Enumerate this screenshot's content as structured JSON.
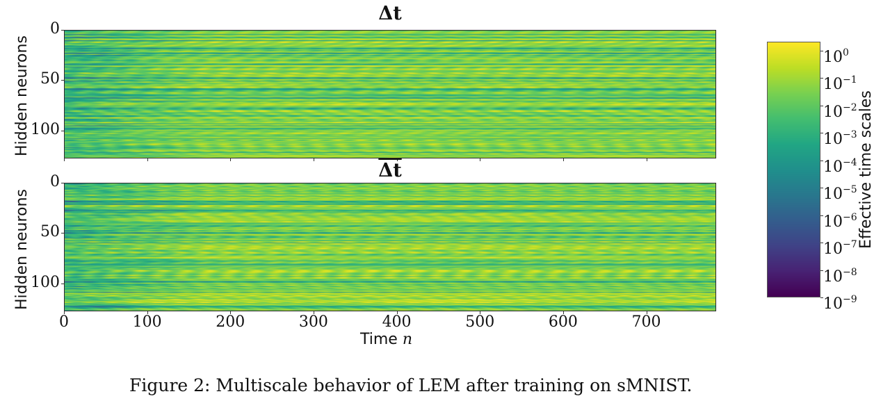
{
  "figure": {
    "caption": "Figure 2: Multiscale behavior of LEM after training on sMNIST."
  },
  "chart_data": [
    {
      "type": "heatmap",
      "title": "Δt",
      "title_overline": false,
      "xlabel": "",
      "ylabel": "Hidden neurons",
      "x_range": [
        0,
        784
      ],
      "y_range": [
        0,
        128
      ],
      "y_inverted": true,
      "xticks": [
        0,
        100,
        200,
        300,
        400,
        500,
        600,
        700
      ],
      "xtick_labels_visible": false,
      "yticks": [
        0,
        50,
        100
      ],
      "ytick_labels": [
        "0",
        "50",
        "100"
      ],
      "colormap": "viridis",
      "color_scale": "log",
      "value_description": "Effective time scales per hidden neuron over time; mostly 1e-2 to 1e0 with darker bands (~1e-5 to 1e-7) concentrated for n < 150; periodic modulation with period ~28 steps",
      "log10_value_range": [
        -7,
        0
      ],
      "periodic_modulation_period": 28,
      "seed": 17
    },
    {
      "type": "heatmap",
      "title": "Δt",
      "title_overline": true,
      "xlabel": "Time n",
      "ylabel": "Hidden neurons",
      "x_range": [
        0,
        784
      ],
      "y_range": [
        0,
        128
      ],
      "y_inverted": true,
      "xticks": [
        0,
        100,
        200,
        300,
        400,
        500,
        600,
        700
      ],
      "xtick_labels": [
        "0",
        "100",
        "200",
        "300",
        "400",
        "500",
        "600",
        "700"
      ],
      "yticks": [
        0,
        50,
        100
      ],
      "ytick_labels": [
        "0",
        "50",
        "100"
      ],
      "colormap": "viridis",
      "color_scale": "log",
      "value_description": "Effective time scales (overline Δt) per hidden neuron over time; mostly 1e-2 to 1e0 with darker bands concentrated for n < 150; periodic modulation with period ~28 steps",
      "log10_value_range": [
        -7,
        0
      ],
      "periodic_modulation_period": 28,
      "seed": 41
    },
    {
      "type": "colorbar",
      "label": "Effective time scales",
      "colormap": "viridis",
      "scale": "log",
      "range": [
        1e-09,
        2.1
      ],
      "tick_values": [
        1,
        0.1,
        0.01,
        0.001,
        0.0001,
        1e-05,
        1e-06,
        1e-07,
        1e-08,
        1e-09
      ],
      "tick_labels": [
        {
          "base": "10",
          "exp": "0"
        },
        {
          "base": "10",
          "exp": "−1"
        },
        {
          "base": "10",
          "exp": "−2"
        },
        {
          "base": "10",
          "exp": "−3"
        },
        {
          "base": "10",
          "exp": "−4"
        },
        {
          "base": "10",
          "exp": "−5"
        },
        {
          "base": "10",
          "exp": "−6"
        },
        {
          "base": "10",
          "exp": "−7"
        },
        {
          "base": "10",
          "exp": "−8"
        },
        {
          "base": "10",
          "exp": "−9"
        }
      ]
    }
  ],
  "labels": {
    "top_title": "Δt",
    "bottom_title": "Δt",
    "ylabel_top": "Hidden neurons",
    "ylabel_bottom": "Hidden neurons",
    "xlabel_word": "Time",
    "xlabel_var": "n",
    "colorbar_label": "Effective time scales"
  }
}
